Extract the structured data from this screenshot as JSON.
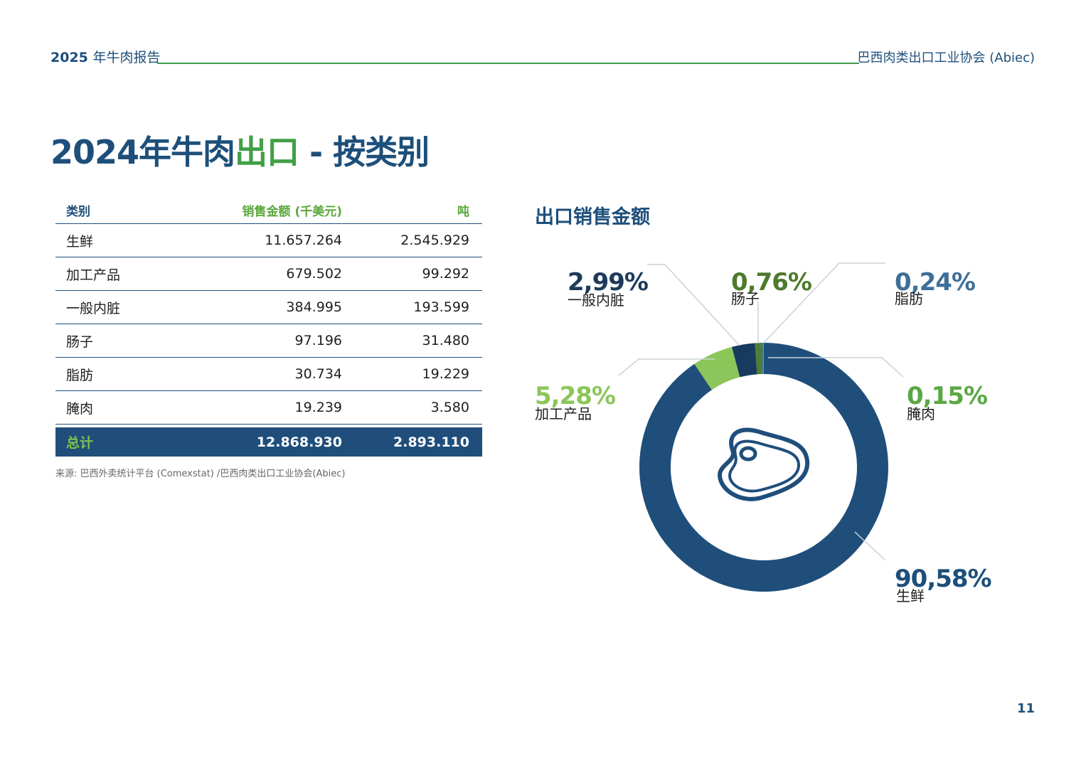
{
  "header": {
    "year_label": "2025",
    "report_label": "年牛肉报告",
    "org_label": "巴西肉类出口工业协会 (Abiec)"
  },
  "title": {
    "part1": "2024年牛肉",
    "part2": "出口",
    "part3": " - 按类别"
  },
  "table": {
    "headers": [
      "类别",
      "销售金额 (千美元)",
      "吨"
    ],
    "rows": [
      [
        "生鲜",
        "11.657.264",
        "2.545.929"
      ],
      [
        "加工产品",
        "679.502",
        "99.292"
      ],
      [
        "一般内脏",
        "384.995",
        "193.599"
      ],
      [
        "肠子",
        "97.196",
        "31.480"
      ],
      [
        "脂肪",
        "30.734",
        "19.229"
      ],
      [
        "腌肉",
        "19.239",
        "3.580"
      ]
    ],
    "total": [
      "总计",
      "12.868.930",
      "2.893.110"
    ]
  },
  "source": "来源: 巴西外卖统计平台 (Comexstat) /巴西肉类出口工业协会(Abiec)",
  "chart_data": {
    "type": "pie",
    "title": "出口销售金额",
    "categories": [
      "生鲜",
      "加工产品",
      "一般内脏",
      "肠子",
      "脂肪",
      "腌肉"
    ],
    "values": [
      90.58,
      5.28,
      2.99,
      0.76,
      0.24,
      0.15
    ],
    "labels": [
      "90,58%",
      "5,28%",
      "2,99%",
      "0,76%",
      "0,24%",
      "0,15%"
    ],
    "colors": [
      "#1f4e7b",
      "#8cc65a",
      "#173a5e",
      "#4f7d34",
      "#2e6b94",
      "#5aa843"
    ],
    "label_colors": [
      "#1d4f7a",
      "#8cc65a",
      "#1d3a5a",
      "#4d7a2d",
      "#3e6f9a",
      "#5aa843"
    ],
    "donut": true,
    "center_icon": "steak-icon"
  },
  "page_number": "11"
}
